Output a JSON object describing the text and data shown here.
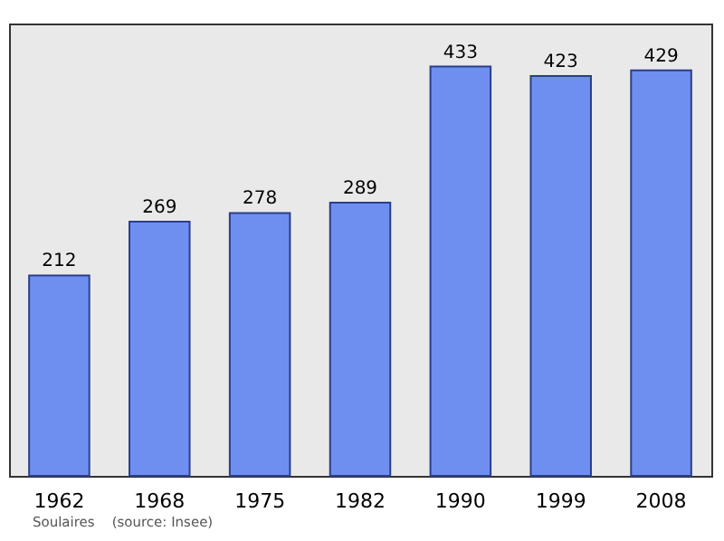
{
  "chart_data": {
    "type": "bar",
    "categories": [
      "1962",
      "1968",
      "1975",
      "1982",
      "1990",
      "1999",
      "2008"
    ],
    "values": [
      212,
      269,
      278,
      289,
      433,
      423,
      429
    ],
    "color": "#6f8ff0",
    "data_labels": true,
    "annotations": [
      "Soulaires    (source: Insee)"
    ]
  }
}
